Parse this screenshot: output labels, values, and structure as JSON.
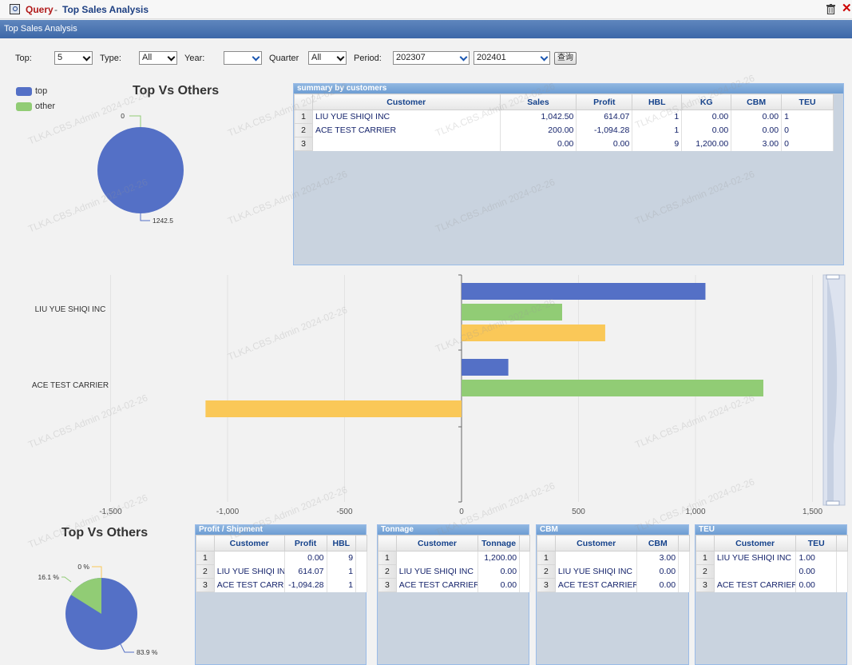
{
  "window": {
    "title_prefix": "Query",
    "title_separator": "-",
    "title": "Top Sales Analysis"
  },
  "panel": {
    "title": "Top Sales Analysis"
  },
  "filters": {
    "top_label": "Top:",
    "top_value": "5",
    "type_label": "Type:",
    "type_value": "All",
    "year_label": "Year:",
    "year_value": "",
    "quarter_label": "Quarter",
    "quarter_value": "All",
    "period_label": "Period:",
    "period_from": "202307",
    "period_to": "202401",
    "query_button": "查询"
  },
  "top_pie": {
    "title": "Top Vs Others",
    "legend": [
      {
        "label": "top",
        "color": "#5470c6"
      },
      {
        "label": "other",
        "color": "#91cc75"
      }
    ],
    "label_other": "0",
    "label_top": "1242.5"
  },
  "summary": {
    "title": "summary by customers",
    "columns": [
      "Customer",
      "Sales",
      "Profit",
      "HBL",
      "KG",
      "CBM",
      "TEU"
    ],
    "rows": [
      [
        "1",
        "LIU YUE SHIQI INC",
        "1,042.50",
        "614.07",
        "1",
        "0.00",
        "0.00",
        "1"
      ],
      [
        "2",
        "ACE TEST CARRIER",
        "200.00",
        "-1,094.28",
        "1",
        "0.00",
        "0.00",
        "0"
      ],
      [
        "3",
        "",
        "0.00",
        "0.00",
        "9",
        "1,200.00",
        "3.00",
        "0"
      ]
    ]
  },
  "chart_data": {
    "type": "bar",
    "orientation": "horizontal",
    "categories": [
      "LIU YUE SHIQI INC",
      "ACE TEST CARRIER"
    ],
    "series": [
      {
        "values": [
          1042.5,
          200.0
        ],
        "color": "#5470c6"
      },
      {
        "values": [
          430,
          1290
        ],
        "color": "#91cc75"
      },
      {
        "values": [
          614.07,
          -1094.28
        ],
        "color": "#fac858"
      }
    ],
    "xlim": [
      -1500,
      1500
    ],
    "x_ticks": [
      "-1,500",
      "-1,000",
      "-500",
      "0",
      "500",
      "1,000",
      "1,500"
    ],
    "grid": true
  },
  "bottom_pie": {
    "title": "Top Vs Others",
    "labels": {
      "small": "0 %",
      "green": "16.1 %",
      "blue": "83.9 %"
    },
    "percent_green": 16.1,
    "percent_blue": 83.9
  },
  "profit_grid": {
    "title": "Profit / Shipment",
    "columns": [
      "Customer",
      "Profit",
      "HBL"
    ],
    "rows": [
      [
        "1",
        "",
        "0.00",
        "9"
      ],
      [
        "2",
        "LIU YUE SHIQI INC",
        "614.07",
        "1"
      ],
      [
        "3",
        "ACE TEST CARRIER",
        "-1,094.28",
        "1"
      ]
    ]
  },
  "tonnage_grid": {
    "title": "Tonnage",
    "columns": [
      "Customer",
      "Tonnage"
    ],
    "rows": [
      [
        "1",
        "",
        "1,200.00"
      ],
      [
        "2",
        "LIU YUE SHIQI INC",
        "0.00"
      ],
      [
        "3",
        "ACE TEST CARRIER",
        "0.00"
      ]
    ]
  },
  "cbm_grid": {
    "title": "CBM",
    "columns": [
      "Customer",
      "CBM"
    ],
    "rows": [
      [
        "1",
        "",
        "3.00"
      ],
      [
        "2",
        "LIU YUE SHIQI INC",
        "0.00"
      ],
      [
        "3",
        "ACE TEST CARRIER",
        "0.00"
      ]
    ]
  },
  "teu_grid": {
    "title": "TEU",
    "columns": [
      "Customer",
      "TEU"
    ],
    "rows": [
      [
        "1",
        "LIU YUE SHIQI INC",
        "1.00"
      ],
      [
        "2",
        "",
        "0.00"
      ],
      [
        "3",
        "ACE TEST CARRIER",
        "0.00"
      ]
    ]
  },
  "watermark": "TLKA.CBS.Admin 2024-02-26"
}
